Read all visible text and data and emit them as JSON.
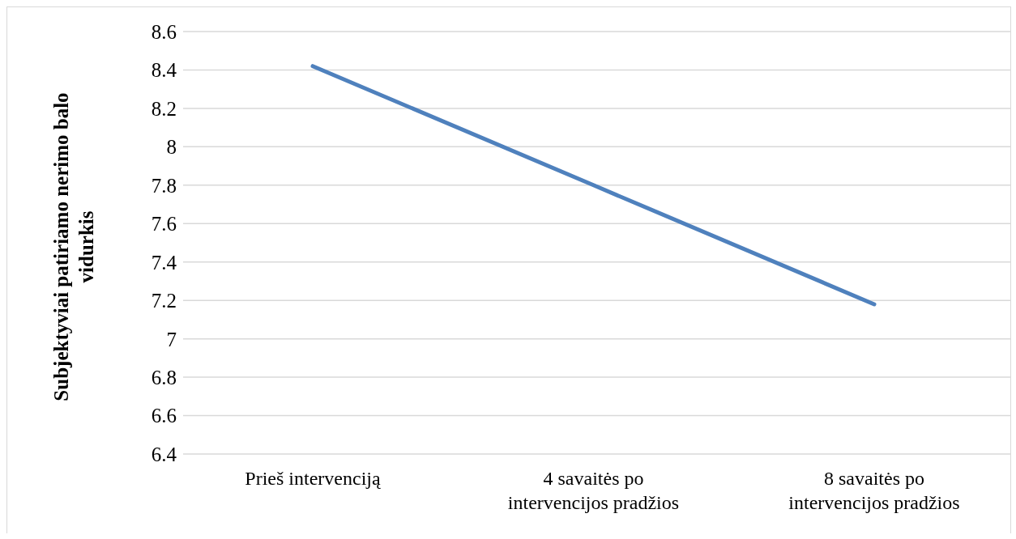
{
  "chart_data": {
    "type": "line",
    "ylabel": "Subjektyviai patiriamo nerimo balo vidurkis",
    "categories": [
      "Prieš intervenciją",
      "4 savaitės po intervencijos pradžios",
      "8 savaitės po intervencijos pradžios"
    ],
    "series": [
      {
        "color": "#4f81bd",
        "values": [
          8.42,
          7.8,
          7.18
        ]
      }
    ],
    "ylim": [
      6.4,
      8.6
    ],
    "yticks": [
      6.4,
      6.6,
      6.8,
      7,
      7.2,
      7.4,
      7.6,
      7.8,
      8,
      8.2,
      8.4,
      8.6
    ],
    "grid": "y",
    "legend": false,
    "marker": "none",
    "line_style": "solid"
  }
}
